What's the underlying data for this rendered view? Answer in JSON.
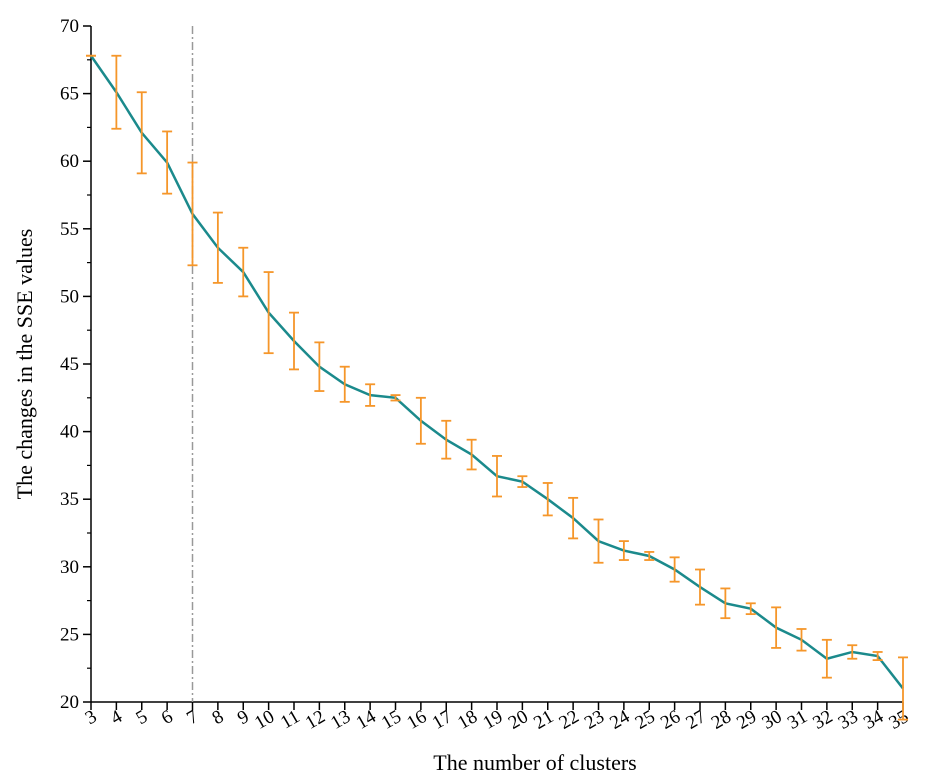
{
  "chart_data": {
    "type": "line",
    "x_label": "The number of clusters",
    "y_label": "The changes in the SSE values",
    "x": [
      3,
      4,
      5,
      6,
      7,
      8,
      9,
      10,
      11,
      12,
      13,
      14,
      15,
      16,
      17,
      18,
      19,
      20,
      21,
      22,
      23,
      24,
      25,
      26,
      27,
      28,
      29,
      30,
      31,
      32,
      33,
      34,
      35
    ],
    "series": [
      {
        "color": "#1b8a8c",
        "error_color": "#f5962a",
        "values": [
          67.8,
          65.1,
          62.1,
          59.9,
          56.1,
          53.6,
          51.8,
          48.8,
          46.7,
          44.8,
          43.5,
          42.7,
          42.5,
          40.8,
          39.4,
          38.3,
          36.7,
          36.3,
          35.0,
          33.6,
          31.9,
          31.2,
          30.8,
          29.8,
          28.5,
          27.3,
          26.9,
          25.5,
          24.6,
          23.2,
          23.7,
          23.4,
          21.0
        ],
        "errors": [
          0,
          2.7,
          3.0,
          2.3,
          3.8,
          2.6,
          1.8,
          3.0,
          2.1,
          1.8,
          1.3,
          0.8,
          0.2,
          1.7,
          1.4,
          1.1,
          1.5,
          0.4,
          1.2,
          1.5,
          1.6,
          0.7,
          0.3,
          0.9,
          1.3,
          1.1,
          0.4,
          1.5,
          0.8,
          1.4,
          0.5,
          0.3,
          2.3
        ]
      }
    ],
    "vline": 7,
    "vline_color": "#999999",
    "xlim": [
      3,
      35
    ],
    "xticks": [
      3,
      4,
      5,
      6,
      7,
      8,
      9,
      10,
      11,
      12,
      13,
      14,
      15,
      16,
      17,
      18,
      19,
      20,
      21,
      22,
      23,
      24,
      25,
      26,
      27,
      28,
      29,
      30,
      31,
      32,
      33,
      34,
      35
    ],
    "ylim": [
      20,
      70
    ],
    "yticks": [
      20,
      25,
      30,
      35,
      40,
      45,
      50,
      55,
      60,
      65,
      70
    ]
  }
}
